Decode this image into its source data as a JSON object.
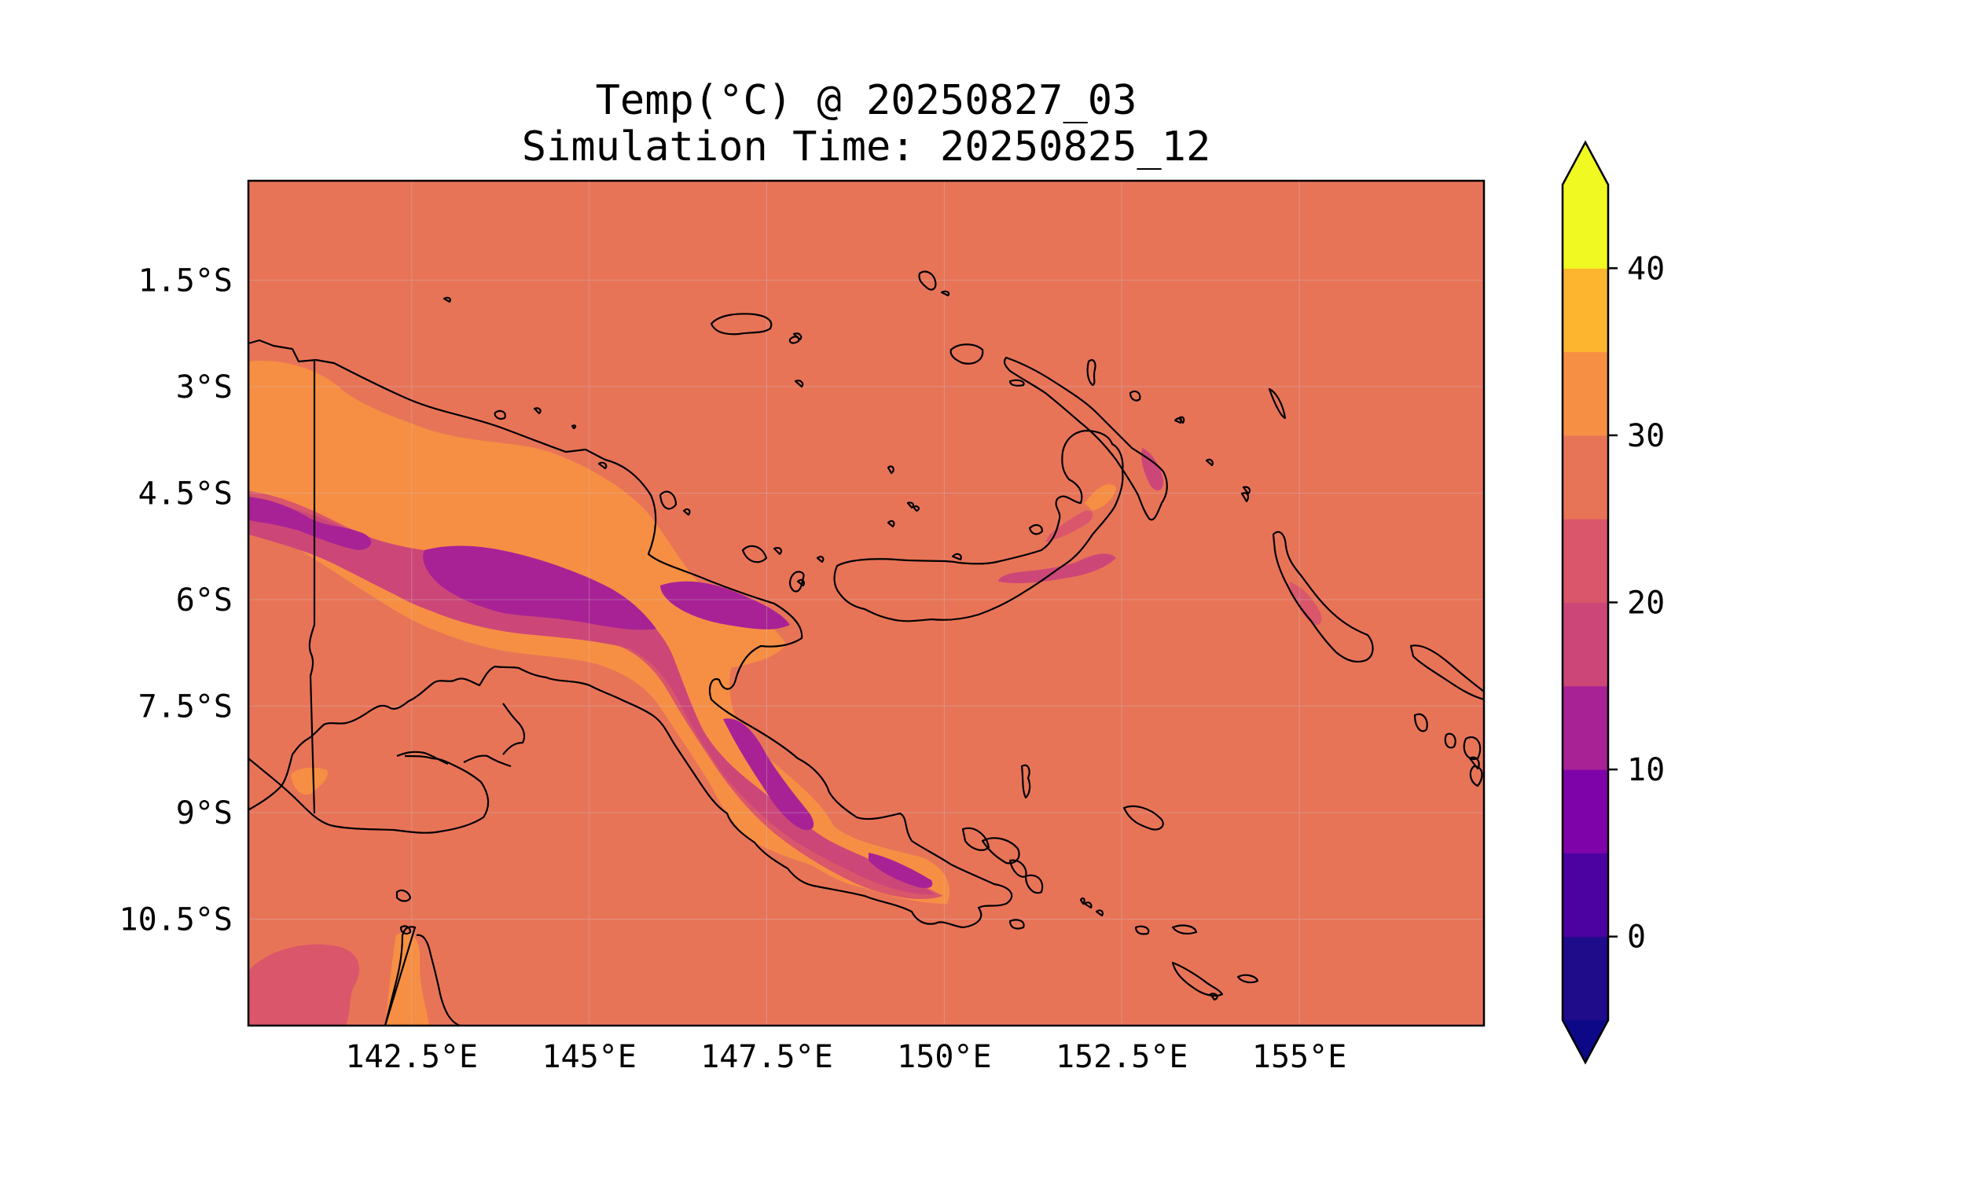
{
  "figure": {
    "title_line1": "Temp(°C) @ 20250827_03",
    "title_line2": "Simulation Time: 20250825_12"
  },
  "map": {
    "lon_range": [
      140.2,
      157.6
    ],
    "lat_range": [
      -12.0,
      -0.1
    ],
    "x_ticks": [
      {
        "lon": 142.5,
        "label": "142.5°E"
      },
      {
        "lon": 145.0,
        "label": "145°E"
      },
      {
        "lon": 147.5,
        "label": "147.5°E"
      },
      {
        "lon": 150.0,
        "label": "150°E"
      },
      {
        "lon": 152.5,
        "label": "152.5°E"
      },
      {
        "lon": 155.0,
        "label": "155°E"
      }
    ],
    "y_ticks": [
      {
        "lat": -1.5,
        "label": "1.5°S"
      },
      {
        "lat": -3.0,
        "label": "3°S"
      },
      {
        "lat": -4.5,
        "label": "4.5°S"
      },
      {
        "lat": -6.0,
        "label": "6°S"
      },
      {
        "lat": -7.5,
        "label": "7.5°S"
      },
      {
        "lat": -9.0,
        "label": "9°S"
      },
      {
        "lat": -10.5,
        "label": "10.5°S"
      }
    ],
    "gridlines": true,
    "background_fill_value_range": "25–30",
    "colors": {
      "background": "#e87458",
      "coastline": "#000000"
    }
  },
  "colorbar": {
    "extend": "both",
    "range": [
      -5,
      45
    ],
    "levels": [
      -5,
      0,
      5,
      10,
      15,
      20,
      25,
      30,
      35,
      40,
      45
    ],
    "colors": [
      "#1f0c8a",
      "#4c02a1",
      "#7e03a8",
      "#a82296",
      "#cc4778",
      "#d9566b",
      "#e87458",
      "#f68f44",
      "#fdb42f",
      "#f0f921"
    ],
    "under_color": "#0d0887",
    "over_color": "#f0f921",
    "ticks": [
      {
        "value": 0,
        "label": "0"
      },
      {
        "value": 10,
        "label": "10"
      },
      {
        "value": 20,
        "label": "20"
      },
      {
        "value": 30,
        "label": "30"
      },
      {
        "value": 40,
        "label": "40"
      }
    ]
  }
}
